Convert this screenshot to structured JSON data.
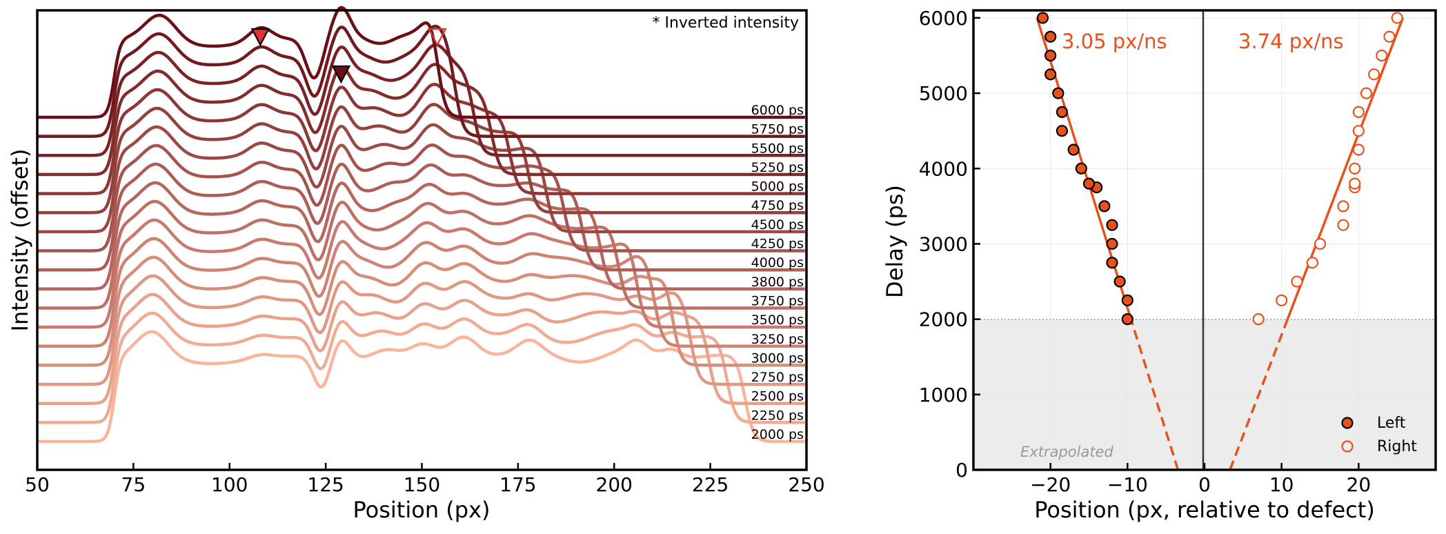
{
  "chart_data": [
    {
      "type": "line",
      "panel": "left",
      "xlabel": "Position (px)",
      "ylabel": "Intensity (offset)",
      "xlim": [
        50,
        250
      ],
      "xticks": [
        "50",
        "75",
        "100",
        "125",
        "150",
        "175",
        "200",
        "225",
        "250"
      ],
      "note": "* Inverted intensity",
      "color_ramp": [
        "#f9b49c",
        "#6a0f16"
      ],
      "markers": [
        {
          "x": 108,
          "style": "filled",
          "color": "#e0302f"
        },
        {
          "x": 129,
          "style": "filled",
          "color": "#6a0f16"
        },
        {
          "x": 154,
          "style": "open",
          "color": "#e0302f"
        }
      ],
      "series": [
        {
          "name": "2000 ps",
          "delay": 2000
        },
        {
          "name": "2250 ps",
          "delay": 2250
        },
        {
          "name": "2500 ps",
          "delay": 2500
        },
        {
          "name": "2750 ps",
          "delay": 2750
        },
        {
          "name": "3000 ps",
          "delay": 3000
        },
        {
          "name": "3250 ps",
          "delay": 3250
        },
        {
          "name": "3500 ps",
          "delay": 3500
        },
        {
          "name": "3750 ps",
          "delay": 3750
        },
        {
          "name": "3800 ps",
          "delay": 3800
        },
        {
          "name": "4000 ps",
          "delay": 4000
        },
        {
          "name": "4250 ps",
          "delay": 4250
        },
        {
          "name": "4500 ps",
          "delay": 4500
        },
        {
          "name": "4750 ps",
          "delay": 4750
        },
        {
          "name": "5000 ps",
          "delay": 5000
        },
        {
          "name": "5250 ps",
          "delay": 5250
        },
        {
          "name": "5500 ps",
          "delay": 5500
        },
        {
          "name": "5750 ps",
          "delay": 5750
        },
        {
          "name": "6000 ps",
          "delay": 6000
        }
      ]
    },
    {
      "type": "scatter",
      "panel": "right",
      "xlabel": "Position (px, relative to defect)",
      "ylabel": "Delay (ps)",
      "xlim": [
        -30,
        30
      ],
      "ylim": [
        0,
        6100
      ],
      "xticks": [
        "−20",
        "−10",
        "0",
        "10",
        "20"
      ],
      "yticks": [
        "0",
        "1000",
        "2000",
        "3000",
        "4000",
        "5000",
        "6000"
      ],
      "grid": true,
      "extrapolated_region": {
        "y_max": 2000,
        "label": "Extrapolated"
      },
      "legend": {
        "placement": "bottom-right",
        "entries": [
          "Left",
          "Right"
        ]
      },
      "accent_color": "#e8501c",
      "fits": [
        {
          "side": "left",
          "slope_label": "3.05 px/ns",
          "x_at_0": -3.45,
          "x_at_6000": -21.75
        },
        {
          "side": "right",
          "slope_label": "3.74 px/ns",
          "x_at_0": 3.3,
          "x_at_6000": 25.74
        }
      ],
      "series": [
        {
          "name": "Left",
          "style": "filled",
          "points": [
            [
              -10,
              2000
            ],
            [
              -10,
              2250
            ],
            [
              -11,
              2500
            ],
            [
              -12,
              2750
            ],
            [
              -12,
              3000
            ],
            [
              -12,
              3250
            ],
            [
              -13,
              3500
            ],
            [
              -14,
              3750
            ],
            [
              -15,
              3800
            ],
            [
              -16,
              4000
            ],
            [
              -17,
              4250
            ],
            [
              -18.5,
              4500
            ],
            [
              -18.5,
              4750
            ],
            [
              -19,
              5000
            ],
            [
              -20,
              5250
            ],
            [
              -20,
              5500
            ],
            [
              -20,
              5750
            ],
            [
              -21,
              6000
            ]
          ]
        },
        {
          "name": "Right",
          "style": "open",
          "points": [
            [
              7,
              2000
            ],
            [
              10,
              2250
            ],
            [
              12,
              2500
            ],
            [
              14,
              2750
            ],
            [
              15,
              3000
            ],
            [
              18,
              3250
            ],
            [
              18,
              3500
            ],
            [
              19.5,
              3750
            ],
            [
              19.5,
              3800
            ],
            [
              19.5,
              4000
            ],
            [
              20,
              4250
            ],
            [
              20,
              4500
            ],
            [
              20,
              4750
            ],
            [
              21,
              5000
            ],
            [
              22,
              5250
            ],
            [
              23,
              5500
            ],
            [
              24,
              5750
            ],
            [
              25,
              6000
            ]
          ]
        }
      ]
    }
  ]
}
